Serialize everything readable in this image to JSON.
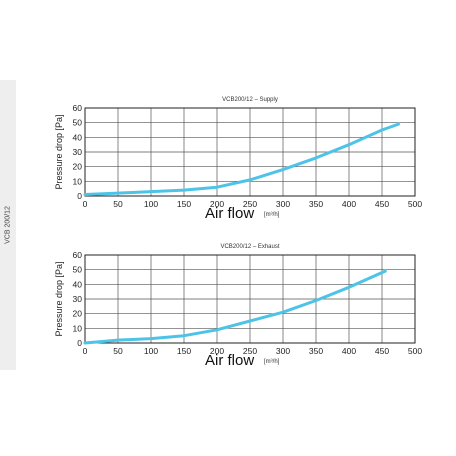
{
  "side_label": "VCB 200/12",
  "chart_data": [
    {
      "type": "line",
      "title": "VCB200/12 – Supply",
      "xlabel": "Air flow",
      "xunit": "[m³/h]",
      "ylabel": "Pressure drop [Pa]",
      "xlim": [
        0,
        500
      ],
      "ylim": [
        0,
        60
      ],
      "xticks": [
        0,
        50,
        100,
        150,
        200,
        250,
        300,
        350,
        400,
        450,
        500
      ],
      "yticks": [
        0,
        10,
        20,
        30,
        40,
        50,
        60
      ],
      "xtick_labels": [
        "0",
        "50",
        "100",
        "150",
        "200",
        "250",
        "300",
        "350",
        "400",
        "450",
        "500"
      ],
      "ytick_labels": [
        "0",
        "10",
        "20",
        "30",
        "40",
        "50",
        "60"
      ],
      "grid": true,
      "line_color": "#4dc3e8",
      "series": [
        {
          "x": [
            0,
            50,
            100,
            150,
            200,
            250,
            300,
            350,
            400,
            450,
            475
          ],
          "y": [
            1,
            2,
            3,
            4,
            6,
            11,
            18,
            26,
            35,
            45,
            49
          ]
        }
      ]
    },
    {
      "type": "line",
      "title": "VCB200/12 – Exhaust",
      "xlabel": "Air flow",
      "xunit": "[m³/h]",
      "ylabel": "Pressure drop [Pa]",
      "xlim": [
        0,
        500
      ],
      "ylim": [
        0,
        60
      ],
      "xticks": [
        0,
        50,
        100,
        150,
        200,
        250,
        300,
        350,
        400,
        450,
        500
      ],
      "yticks": [
        0,
        10,
        20,
        30,
        40,
        50,
        60
      ],
      "xtick_labels": [
        "0",
        "50",
        "100",
        "150",
        "200",
        "250",
        "300",
        "350",
        "400",
        "450",
        "500"
      ],
      "ytick_labels": [
        "0",
        "10",
        "20",
        "30",
        "40",
        "50",
        "60"
      ],
      "grid": true,
      "line_color": "#4dc3e8",
      "series": [
        {
          "x": [
            0,
            50,
            100,
            150,
            200,
            250,
            300,
            350,
            400,
            455
          ],
          "y": [
            0,
            2,
            3,
            5,
            9,
            15,
            21,
            29,
            38,
            49
          ]
        }
      ]
    }
  ]
}
